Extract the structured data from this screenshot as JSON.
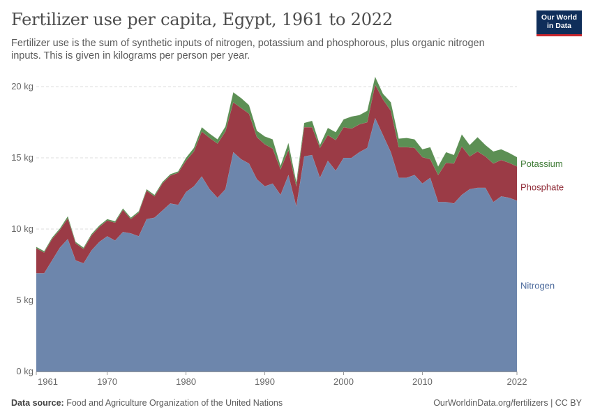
{
  "header": {
    "title": "Fertilizer use per capita, Egypt, 1961 to 2022",
    "subtitle": "Fertilizer use is the sum of synthetic inputs of nitrogen, potassium and phosphorous, plus organic nitrogen inputs. This is given in kilograms per person per year.",
    "logo_line1": "Our World",
    "logo_line2": "in Data"
  },
  "footer": {
    "source_label": "Data source:",
    "source_text": "Food and Agriculture Organization of the United Nations",
    "url_license": "OurWorldinData.org/fertilizers | CC BY"
  },
  "colors": {
    "nitrogen": "#6d86ac",
    "phosphate": "#9b3b46",
    "potassium": "#5c8f54",
    "nitrogen_label": "#4c6a9c",
    "phosphate_label": "#8f2a36",
    "potassium_label": "#3f7b36",
    "grid": "#dddddd",
    "axis": "#999999"
  },
  "chart_data": {
    "type": "area",
    "stacked": true,
    "title": "Fertilizer use per capita, Egypt, 1961 to 2022",
    "xlabel": "",
    "ylabel": "",
    "xlim": [
      1961,
      2022
    ],
    "ylim": [
      0,
      20
    ],
    "y_ticks": [
      0,
      5,
      10,
      15,
      20
    ],
    "y_tick_labels": [
      "0 kg",
      "5 kg",
      "10 kg",
      "15 kg",
      "20 kg"
    ],
    "x_ticks": [
      1961,
      1970,
      1980,
      1990,
      2000,
      2010,
      2022
    ],
    "x_tick_labels": [
      "1961",
      "1970",
      "1980",
      "1990",
      "2000",
      "2010",
      "2022"
    ],
    "grid": "horizontal dashed",
    "legend": "right, inline labels",
    "x": [
      1961,
      1962,
      1963,
      1964,
      1965,
      1966,
      1967,
      1968,
      1969,
      1970,
      1971,
      1972,
      1973,
      1974,
      1975,
      1976,
      1977,
      1978,
      1979,
      1980,
      1981,
      1982,
      1983,
      1984,
      1985,
      1986,
      1987,
      1988,
      1989,
      1990,
      1991,
      1992,
      1993,
      1994,
      1995,
      1996,
      1997,
      1998,
      1999,
      2000,
      2001,
      2002,
      2003,
      2004,
      2005,
      2006,
      2007,
      2008,
      2009,
      2010,
      2011,
      2012,
      2013,
      2014,
      2015,
      2016,
      2017,
      2018,
      2019,
      2020,
      2021,
      2022
    ],
    "series": [
      {
        "name": "Nitrogen",
        "values": [
          6.9,
          6.9,
          7.8,
          8.7,
          9.3,
          7.8,
          7.6,
          8.5,
          9.1,
          9.5,
          9.2,
          9.8,
          9.7,
          9.5,
          10.7,
          10.8,
          11.3,
          11.8,
          11.7,
          12.6,
          13.0,
          13.7,
          12.8,
          12.2,
          12.8,
          15.4,
          14.9,
          14.6,
          13.5,
          13.0,
          13.2,
          12.4,
          13.8,
          11.6,
          15.1,
          15.2,
          13.6,
          14.8,
          14.1,
          15.0,
          15.0,
          15.4,
          15.7,
          17.8,
          16.6,
          15.4,
          13.6,
          13.6,
          13.8,
          13.2,
          13.6,
          11.9,
          11.9,
          11.8,
          12.4,
          12.8,
          12.9,
          12.9,
          11.9,
          12.3,
          12.2,
          12.0
        ]
      },
      {
        "name": "Phosphate",
        "values": [
          1.75,
          1.45,
          1.5,
          1.25,
          1.45,
          1.2,
          1.0,
          1.05,
          1.05,
          1.1,
          1.25,
          1.55,
          1.0,
          1.65,
          2.0,
          1.5,
          1.9,
          1.95,
          2.25,
          2.2,
          2.45,
          3.15,
          3.6,
          3.8,
          4.05,
          3.5,
          3.6,
          3.5,
          2.95,
          2.95,
          2.45,
          1.8,
          1.75,
          1.4,
          2.05,
          1.95,
          2.1,
          1.8,
          2.15,
          2.15,
          2.05,
          1.95,
          1.8,
          2.35,
          2.5,
          2.9,
          2.15,
          2.15,
          1.9,
          1.85,
          1.3,
          1.9,
          2.75,
          2.8,
          3.4,
          2.3,
          2.55,
          2.2,
          2.7,
          2.55,
          2.45,
          2.4
        ]
      },
      {
        "name": "Potassium",
        "values": [
          0.1,
          0.1,
          0.1,
          0.1,
          0.15,
          0.1,
          0.1,
          0.1,
          0.1,
          0.1,
          0.1,
          0.1,
          0.1,
          0.1,
          0.1,
          0.1,
          0.1,
          0.1,
          0.1,
          0.2,
          0.25,
          0.3,
          0.3,
          0.3,
          0.35,
          0.7,
          0.7,
          0.6,
          0.45,
          0.55,
          0.65,
          0.25,
          0.5,
          0.3,
          0.3,
          0.45,
          0.2,
          0.5,
          0.55,
          0.55,
          0.85,
          0.65,
          0.8,
          0.55,
          0.4,
          0.6,
          0.6,
          0.65,
          0.6,
          0.55,
          0.85,
          0.6,
          0.75,
          0.6,
          0.85,
          0.8,
          1.0,
          0.8,
          0.85,
          0.75,
          0.7,
          0.65
        ]
      }
    ]
  }
}
